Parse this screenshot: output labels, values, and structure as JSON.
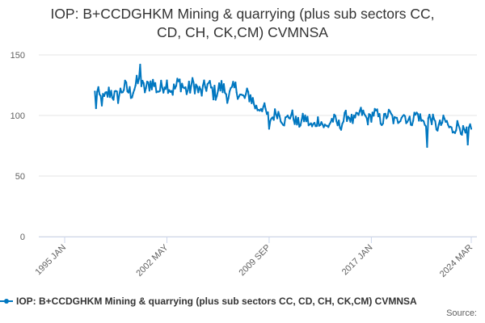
{
  "chart_data": {
    "type": "line",
    "title_line1": "IOP: B+CCDGHKM Mining & quarrying (plus sub sectors CC,",
    "title_line2": "CD, CH, CK,CM) CVMNSA",
    "xlabel": "",
    "ylabel": "",
    "x_range": [
      "1995-01",
      "2024-03"
    ],
    "ylim": [
      0,
      150
    ],
    "y_ticks": [
      0,
      50,
      100,
      150
    ],
    "x_tick_labels": [
      {
        "label": "1995 JAN",
        "date": "1995-01"
      },
      {
        "label": "2002 MAY",
        "date": "2002-05"
      },
      {
        "label": "2009 SEP",
        "date": "2009-09"
      },
      {
        "label": "2017 JAN",
        "date": "2017-01"
      },
      {
        "label": "2024 MAR",
        "date": "2024-03"
      }
    ],
    "grid": "horizontal",
    "legend_position": "bottom",
    "series": [
      {
        "name": "IOP: B+CCDGHKM Mining & quarrying (plus sub sectors CC, CD, CH, CK,CM) CVMNSA",
        "color": "#0077c0",
        "annual_mean": {
          "1997": 115,
          "1998": 117,
          "1999": 121,
          "2000": 125,
          "2001": 124,
          "2002": 124,
          "2003": 124,
          "2004": 122,
          "2005": 122,
          "2006": 120,
          "2007": 119,
          "2008": 112,
          "2009": 101,
          "2010": 99,
          "2011": 97,
          "2012": 94,
          "2013": 93,
          "2014": 94,
          "2015": 98,
          "2016": 100,
          "2017": 99,
          "2018": 98,
          "2019": 98,
          "2020": 98,
          "2021": 94,
          "2022": 92,
          "2023": 88,
          "2024": 88
        },
        "points": [
          {
            "x": "1997-04",
            "y": 106
          },
          {
            "x": "2000-06",
            "y": 142
          },
          {
            "x": "2009-09",
            "y": 89
          },
          {
            "x": "2021-01",
            "y": 74
          },
          {
            "x": "2023-12",
            "y": 76
          },
          {
            "x": "2024-03",
            "y": 89
          }
        ]
      }
    ]
  },
  "source_label": "Source:"
}
